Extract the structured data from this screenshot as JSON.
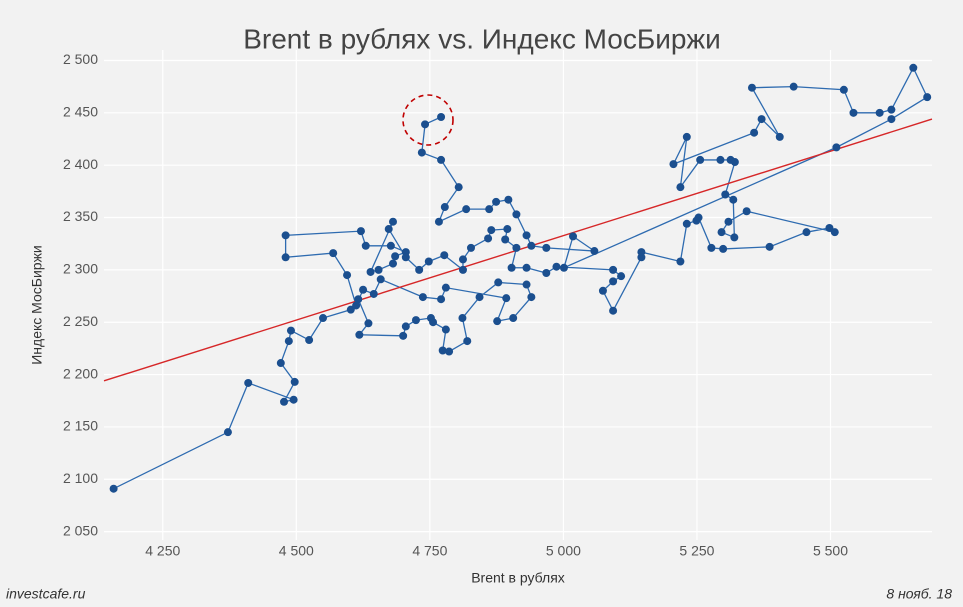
{
  "chart_data": {
    "type": "connected_scatter",
    "title": "Brent в рублях vs. Индекс МосБиржи",
    "x_label": "Brent в рублях",
    "y_label": "Индекс МосБиржи",
    "source": "investcafe.ru",
    "date": "8 нояб. 18",
    "color": "#1b4f8f",
    "line_color": "#2e6bb0",
    "grid": true,
    "xlim": [
      4140,
      5690
    ],
    "ylim": [
      2042,
      2510
    ],
    "xticks": [
      {
        "value": 4250,
        "label": "4 250"
      },
      {
        "value": 4500,
        "label": "4 500"
      },
      {
        "value": 4750,
        "label": "4 750"
      },
      {
        "value": 5000,
        "label": "5 000"
      },
      {
        "value": 5250,
        "label": "5 250"
      },
      {
        "value": 5500,
        "label": "5 500"
      }
    ],
    "yticks": [
      {
        "value": 2050,
        "label": "2 050"
      },
      {
        "value": 2100,
        "label": "2 100"
      },
      {
        "value": 2150,
        "label": "2 150"
      },
      {
        "value": 2200,
        "label": "2 200"
      },
      {
        "value": 2250,
        "label": "2 250"
      },
      {
        "value": 2300,
        "label": "2 300"
      },
      {
        "value": 2350,
        "label": "2 350"
      },
      {
        "value": 2400,
        "label": "2 400"
      },
      {
        "value": 2450,
        "label": "2 450"
      },
      {
        "value": 2500,
        "label": "2 500"
      }
    ],
    "trendline": {
      "color": "#d62728",
      "x": [
        4140,
        5690
      ],
      "y": [
        2194,
        2444
      ]
    },
    "x": [
      4158,
      4372,
      4410,
      4495,
      4477,
      4497,
      4471,
      4486,
      4490,
      4524,
      4550,
      4602,
      4616,
      4635,
      4618,
      4700,
      4705,
      4724,
      4752,
      4756,
      4780,
      4774,
      4786,
      4820,
      4811,
      4843,
      4878,
      4931,
      4940,
      4906,
      4876,
      4893,
      4780,
      4771,
      4737,
      4658,
      4645,
      4625,
      4612,
      4595,
      4569,
      4480,
      4480,
      4621,
      4630,
      4677,
      4705,
      4685,
      4681,
      4654,
      4639,
      4681,
      4673,
      4705,
      4730,
      4748,
      4777,
      4812,
      4812,
      4827,
      4859,
      4865,
      4895,
      4891,
      4912,
      4903,
      4931,
      4968,
      4987,
      5093,
      5108,
      5093,
      5074,
      5093,
      5146,
      5146,
      5219,
      5231,
      5249,
      5253,
      5277,
      5299,
      5386,
      5455,
      5498,
      5508,
      5343,
      5309,
      5296,
      5320,
      5318,
      5303,
      5321,
      5313,
      5294,
      5256,
      5219,
      5231,
      5206,
      5357,
      5371,
      5405,
      5353,
      5431,
      5525,
      5543,
      5592,
      5614,
      5655,
      5681,
      5614,
      5511,
      5001,
      5018,
      5058,
      4968,
      4940,
      4931,
      4912,
      4897,
      4874,
      4861,
      4818,
      4767,
      4778,
      4804,
      4771,
      4735,
      4741,
      4771
    ],
    "y": [
      2091,
      2145,
      2192,
      2176,
      2174,
      2193,
      2211,
      2232,
      2242,
      2233,
      2254,
      2262,
      2272,
      2249,
      2238,
      2237,
      2246,
      2252,
      2254,
      2250,
      2243,
      2223,
      2222,
      2232,
      2254,
      2274,
      2288,
      2286,
      2274,
      2254,
      2251,
      2273,
      2283,
      2272,
      2274,
      2291,
      2277,
      2281,
      2266,
      2295,
      2316,
      2312,
      2333,
      2337,
      2323,
      2323,
      2317,
      2313,
      2306,
      2300,
      2298,
      2346,
      2339,
      2312,
      2300,
      2308,
      2314,
      2300,
      2310,
      2321,
      2330,
      2338,
      2339,
      2329,
      2321,
      2302,
      2302,
      2297,
      2303,
      2300,
      2294,
      2289,
      2280,
      2261,
      2312,
      2317,
      2308,
      2344,
      2347,
      2350,
      2321,
      2320,
      2322,
      2336,
      2340,
      2336,
      2356,
      2346,
      2336,
      2331,
      2367,
      2372,
      2403,
      2405,
      2405,
      2405,
      2379,
      2427,
      2401,
      2431,
      2444,
      2427,
      2474,
      2475,
      2472,
      2450,
      2450,
      2453,
      2493,
      2465,
      2444,
      2417,
      2302,
      2332,
      2318,
      2321,
      2323,
      2333,
      2353,
      2367,
      2365,
      2358,
      2358,
      2346,
      2360,
      2379,
      2405,
      2412,
      2439,
      2446
    ]
  }
}
